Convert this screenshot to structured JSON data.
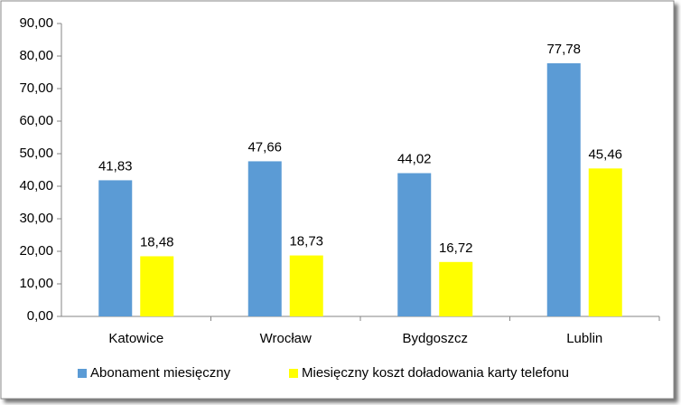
{
  "chart_data": {
    "type": "bar",
    "categories": [
      "Katowice",
      "Wrocław",
      "Bydgoszcz",
      "Lublin"
    ],
    "series": [
      {
        "name": "Abonament miesięczny",
        "color": "#5b9bd5",
        "values": [
          41.83,
          47.66,
          44.02,
          77.78
        ],
        "value_labels": [
          "41,83",
          "47,66",
          "44,02",
          "77,78"
        ]
      },
      {
        "name": "Miesięczny koszt doładowania karty telefonu",
        "color": "#ffff00",
        "values": [
          18.48,
          18.73,
          16.72,
          45.46
        ],
        "value_labels": [
          "18,48",
          "18,73",
          "16,72",
          "45,46"
        ]
      }
    ],
    "ylim": [
      0,
      90
    ],
    "yticks": [
      {
        "value": 0,
        "label": "0,00"
      },
      {
        "value": 10,
        "label": "10,00"
      },
      {
        "value": 20,
        "label": "20,00"
      },
      {
        "value": 30,
        "label": "30,00"
      },
      {
        "value": 40,
        "label": "40,00"
      },
      {
        "value": 50,
        "label": "50,00"
      },
      {
        "value": 60,
        "label": "60,00"
      },
      {
        "value": 70,
        "label": "70,00"
      },
      {
        "value": 80,
        "label": "80,00"
      },
      {
        "value": 90,
        "label": "90,00"
      }
    ],
    "legend": "bottom"
  }
}
